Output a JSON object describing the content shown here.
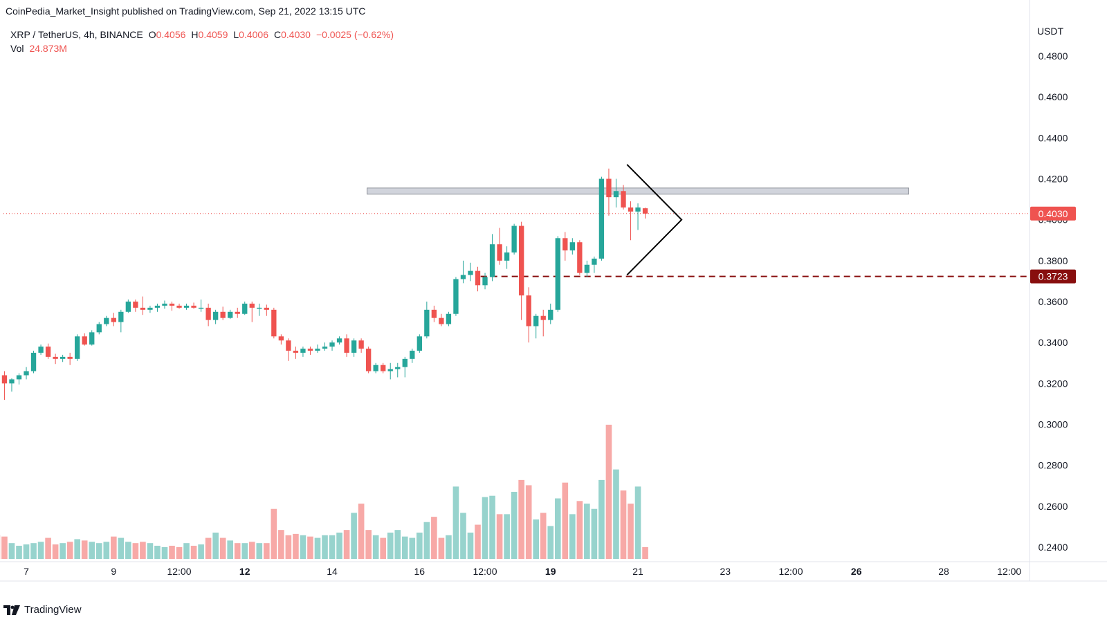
{
  "header": {
    "publish_line": "CoinPedia_Market_Insight published on TradingView.com, Sep 21, 2022 13:15 UTC"
  },
  "legend": {
    "symbol": "XRP / TetherUS, 4h, BINANCE",
    "o_label": "O",
    "o_value": "0.4056",
    "h_label": "H",
    "h_value": "0.4059",
    "l_label": "L",
    "l_value": "0.4006",
    "c_label": "C",
    "c_value": "0.4030",
    "change": "−0.0025 (−0.62%)",
    "vol_label": "Vol",
    "vol_value": "24.873M"
  },
  "footer": {
    "brand": "TradingView"
  },
  "colors": {
    "up": "#26a69a",
    "down": "#ef5350",
    "vol_up": "#97d3cd",
    "vol_down": "#f7a9a7",
    "price_label_bg": "#ef5350",
    "support_color": "#880e0e",
    "zone_fill": "#d1d4dc"
  },
  "chart_data": {
    "type": "candlestick",
    "currency_label": "USDT",
    "y_ticks": [
      "0.4800",
      "0.4600",
      "0.4400",
      "0.4200",
      "0.4000",
      "0.3800",
      "0.3600",
      "0.3400",
      "0.3200",
      "0.3000",
      "0.2800",
      "0.2600",
      "0.2400"
    ],
    "ylim": [
      0.2345,
      0.4945
    ],
    "x_ticks": [
      {
        "label": "7",
        "bold": false,
        "day": 7
      },
      {
        "label": "9",
        "bold": false,
        "day": 9
      },
      {
        "label": "12:00",
        "bold": false,
        "day": 10.5
      },
      {
        "label": "12",
        "bold": true,
        "day": 12
      },
      {
        "label": "14",
        "bold": false,
        "day": 14
      },
      {
        "label": "16",
        "bold": false,
        "day": 16
      },
      {
        "label": "12:00",
        "bold": false,
        "day": 17.5
      },
      {
        "label": "19",
        "bold": true,
        "day": 19
      },
      {
        "label": "21",
        "bold": false,
        "day": 21
      },
      {
        "label": "23",
        "bold": false,
        "day": 23
      },
      {
        "label": "12:00",
        "bold": false,
        "day": 24.5
      },
      {
        "label": "26",
        "bold": true,
        "day": 26
      },
      {
        "label": "28",
        "bold": false,
        "day": 28
      },
      {
        "label": "12:00",
        "bold": false,
        "day": 29.5
      }
    ],
    "candles": [
      [
        0.3355,
        0.337,
        0.3245,
        0.326,
        30
      ],
      [
        0.326,
        0.33,
        0.316,
        0.324,
        18
      ],
      [
        0.324,
        0.326,
        0.312,
        0.32,
        17
      ],
      [
        0.32,
        0.3225,
        0.316,
        0.322,
        12
      ],
      [
        0.322,
        0.325,
        0.3195,
        0.324,
        10
      ],
      [
        0.324,
        0.328,
        0.322,
        0.326,
        11
      ],
      [
        0.326,
        0.336,
        0.325,
        0.335,
        12
      ],
      [
        0.335,
        0.339,
        0.334,
        0.338,
        13
      ],
      [
        0.338,
        0.3395,
        0.332,
        0.333,
        16
      ],
      [
        0.333,
        0.3345,
        0.3295,
        0.332,
        11
      ],
      [
        0.332,
        0.334,
        0.3305,
        0.333,
        12
      ],
      [
        0.333,
        0.335,
        0.329,
        0.332,
        13
      ],
      [
        0.332,
        0.344,
        0.331,
        0.343,
        15
      ],
      [
        0.343,
        0.3445,
        0.3385,
        0.339,
        14
      ],
      [
        0.339,
        0.346,
        0.3385,
        0.345,
        13
      ],
      [
        0.345,
        0.35,
        0.344,
        0.349,
        12
      ],
      [
        0.349,
        0.353,
        0.348,
        0.352,
        13
      ],
      [
        0.352,
        0.3545,
        0.348,
        0.35,
        17
      ],
      [
        0.35,
        0.356,
        0.345,
        0.355,
        16
      ],
      [
        0.355,
        0.361,
        0.3545,
        0.36,
        13
      ],
      [
        0.36,
        0.361,
        0.355,
        0.357,
        12
      ],
      [
        0.357,
        0.3625,
        0.3535,
        0.356,
        13
      ],
      [
        0.356,
        0.358,
        0.3545,
        0.357,
        12
      ],
      [
        0.357,
        0.359,
        0.355,
        0.358,
        10
      ],
      [
        0.358,
        0.3605,
        0.3565,
        0.359,
        9
      ],
      [
        0.359,
        0.36,
        0.3555,
        0.358,
        10
      ],
      [
        0.358,
        0.359,
        0.3565,
        0.357,
        9
      ],
      [
        0.357,
        0.359,
        0.356,
        0.358,
        12
      ],
      [
        0.358,
        0.3595,
        0.3565,
        0.357,
        10
      ],
      [
        0.357,
        0.361,
        0.355,
        0.357,
        11
      ],
      [
        0.357,
        0.359,
        0.348,
        0.351,
        16
      ],
      [
        0.351,
        0.356,
        0.349,
        0.355,
        20
      ],
      [
        0.355,
        0.3575,
        0.351,
        0.352,
        16
      ],
      [
        0.352,
        0.356,
        0.3515,
        0.355,
        14
      ],
      [
        0.355,
        0.357,
        0.352,
        0.354,
        12
      ],
      [
        0.354,
        0.36,
        0.3535,
        0.359,
        12
      ],
      [
        0.359,
        0.36,
        0.35,
        0.357,
        13
      ],
      [
        0.357,
        0.359,
        0.353,
        0.357,
        12
      ],
      [
        0.357,
        0.3585,
        0.353,
        0.356,
        12
      ],
      [
        0.356,
        0.357,
        0.342,
        0.343,
        38
      ],
      [
        0.343,
        0.344,
        0.339,
        0.341,
        22
      ],
      [
        0.341,
        0.342,
        0.331,
        0.336,
        18
      ],
      [
        0.336,
        0.338,
        0.332,
        0.335,
        19
      ],
      [
        0.335,
        0.338,
        0.333,
        0.337,
        18
      ],
      [
        0.337,
        0.338,
        0.334,
        0.336,
        17
      ],
      [
        0.336,
        0.339,
        0.335,
        0.337,
        16
      ],
      [
        0.337,
        0.34,
        0.336,
        0.338,
        18
      ],
      [
        0.338,
        0.341,
        0.336,
        0.34,
        18
      ],
      [
        0.34,
        0.343,
        0.339,
        0.342,
        20
      ],
      [
        0.342,
        0.344,
        0.333,
        0.335,
        22
      ],
      [
        0.335,
        0.342,
        0.333,
        0.341,
        35
      ],
      [
        0.341,
        0.342,
        0.335,
        0.337,
        42
      ],
      [
        0.337,
        0.338,
        0.325,
        0.326,
        22
      ],
      [
        0.326,
        0.33,
        0.325,
        0.329,
        18
      ],
      [
        0.329,
        0.33,
        0.325,
        0.326,
        16
      ],
      [
        0.326,
        0.33,
        0.322,
        0.327,
        20
      ],
      [
        0.327,
        0.33,
        0.323,
        0.328,
        22
      ],
      [
        0.328,
        0.333,
        0.323,
        0.332,
        17
      ],
      [
        0.332,
        0.337,
        0.33,
        0.336,
        16
      ],
      [
        0.336,
        0.344,
        0.335,
        0.343,
        20
      ],
      [
        0.343,
        0.36,
        0.342,
        0.356,
        28
      ],
      [
        0.356,
        0.358,
        0.35,
        0.352,
        32
      ],
      [
        0.352,
        0.354,
        0.348,
        0.349,
        16
      ],
      [
        0.349,
        0.355,
        0.348,
        0.354,
        18
      ],
      [
        0.354,
        0.372,
        0.353,
        0.371,
        55
      ],
      [
        0.371,
        0.38,
        0.369,
        0.373,
        35
      ],
      [
        0.373,
        0.379,
        0.37,
        0.375,
        20
      ],
      [
        0.375,
        0.377,
        0.365,
        0.368,
        26
      ],
      [
        0.368,
        0.374,
        0.366,
        0.372,
        47
      ],
      [
        0.372,
        0.393,
        0.37,
        0.388,
        48
      ],
      [
        0.388,
        0.396,
        0.378,
        0.38,
        34
      ],
      [
        0.38,
        0.387,
        0.376,
        0.384,
        34
      ],
      [
        0.384,
        0.398,
        0.383,
        0.397,
        51
      ],
      [
        0.397,
        0.399,
        0.351,
        0.363,
        60
      ],
      [
        0.363,
        0.367,
        0.34,
        0.348,
        56
      ],
      [
        0.348,
        0.354,
        0.342,
        0.353,
        30
      ],
      [
        0.353,
        0.356,
        0.343,
        0.351,
        35
      ],
      [
        0.351,
        0.359,
        0.349,
        0.356,
        25
      ],
      [
        0.356,
        0.392,
        0.355,
        0.391,
        46
      ],
      [
        0.391,
        0.394,
        0.38,
        0.385,
        58
      ],
      [
        0.385,
        0.391,
        0.383,
        0.389,
        34
      ],
      [
        0.389,
        0.39,
        0.373,
        0.374,
        44
      ],
      [
        0.374,
        0.38,
        0.372,
        0.378,
        42
      ],
      [
        0.378,
        0.382,
        0.374,
        0.381,
        38
      ],
      [
        0.381,
        0.421,
        0.38,
        0.42,
        60
      ],
      [
        0.42,
        0.425,
        0.402,
        0.411,
        102
      ],
      [
        0.411,
        0.42,
        0.406,
        0.414,
        68
      ],
      [
        0.414,
        0.417,
        0.405,
        0.406,
        52
      ],
      [
        0.406,
        0.409,
        0.39,
        0.404,
        42
      ],
      [
        0.404,
        0.408,
        0.395,
        0.406,
        55
      ],
      [
        0.4056,
        0.4059,
        0.4006,
        0.403,
        9
      ]
    ],
    "candle_start_day": 6.167,
    "candle_step_days": 0.16667,
    "resistance_zone": {
      "low": 0.4125,
      "high": 0.4155,
      "from_day": 14.8,
      "to_day": 27.2
    },
    "support_line": {
      "price": 0.3723,
      "from_day": 17.4
    },
    "triangle": {
      "upper_start": [
        20.75,
        0.427
      ],
      "lower_start": [
        20.75,
        0.373
      ],
      "apex": [
        22.0,
        0.4
      ]
    },
    "current_price": {
      "price": 0.403,
      "label": "0.4030"
    },
    "support_label": {
      "price": 0.3723,
      "label": "0.3723"
    },
    "volume_max": 102
  }
}
